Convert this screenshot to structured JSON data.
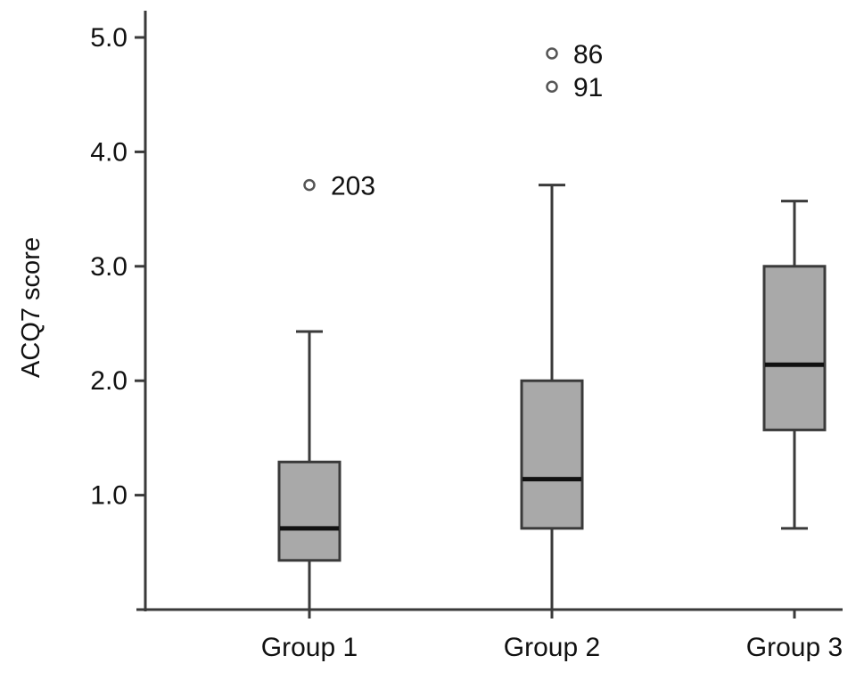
{
  "chart_data": {
    "type": "box",
    "title": "",
    "xlabel": "",
    "ylabel": "ACQ7 score",
    "ylim": [
      0,
      5.2
    ],
    "yticks": [
      1.0,
      2.0,
      3.0,
      4.0,
      5.0
    ],
    "ytick_labels": [
      "1.0",
      "2.0",
      "3.0",
      "4.0",
      "5.0"
    ],
    "categories": [
      "Group 1",
      "Group 2",
      "Group 3"
    ],
    "boxes": [
      {
        "group": "Group 1",
        "whisker_low": 0.0,
        "q1": 0.43,
        "median": 0.71,
        "q3": 1.29,
        "whisker_high": 2.43,
        "outliers": [
          {
            "value": 3.71,
            "label": "203"
          }
        ]
      },
      {
        "group": "Group 2",
        "whisker_low": 0.0,
        "q1": 0.71,
        "median": 1.14,
        "q3": 2.0,
        "whisker_high": 3.71,
        "outliers": [
          {
            "value": 4.86,
            "label": "86"
          },
          {
            "value": 4.57,
            "label": "91"
          }
        ]
      },
      {
        "group": "Group 3",
        "whisker_low": 0.71,
        "q1": 1.57,
        "median": 2.14,
        "q3": 3.0,
        "whisker_high": 3.57,
        "outliers": []
      }
    ],
    "grid": false,
    "legend": "none",
    "colors": {
      "box_fill": "#a9a9a9",
      "line": "#3a3a3a",
      "median": "#111111"
    }
  }
}
